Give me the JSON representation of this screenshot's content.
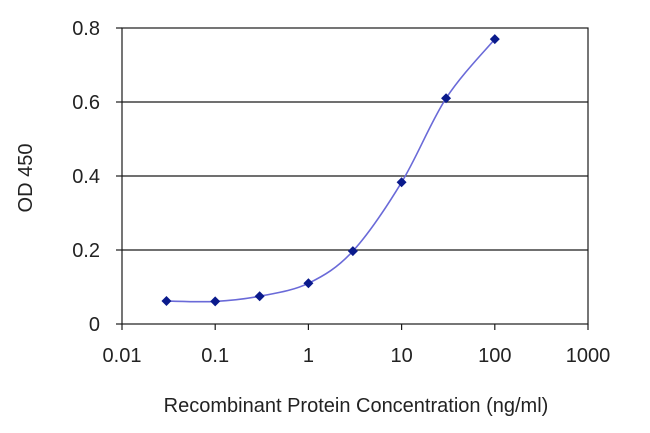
{
  "chart_data": {
    "type": "line",
    "title": "",
    "xlabel": "Recombinant Protein Concentration (ng/ml)",
    "ylabel": "OD 450",
    "x_scale": "log",
    "xlim": [
      0.01,
      1000
    ],
    "ylim": [
      0,
      0.8
    ],
    "x_ticks": [
      "0.01",
      "0.1",
      "1",
      "10",
      "100",
      "1000"
    ],
    "y_ticks": [
      "0",
      "0.2",
      "0.4",
      "0.6",
      "0.8"
    ],
    "grid": "horizontal",
    "legend": "none",
    "series": [
      {
        "x": [
          0.03,
          0.1,
          0.3,
          1,
          3,
          10,
          30,
          100
        ],
        "y": [
          0.062,
          0.061,
          0.075,
          0.11,
          0.197,
          0.383,
          0.61,
          0.77
        ],
        "color": "#6a6ad8",
        "marker_color": "#0a1a8c"
      }
    ]
  }
}
